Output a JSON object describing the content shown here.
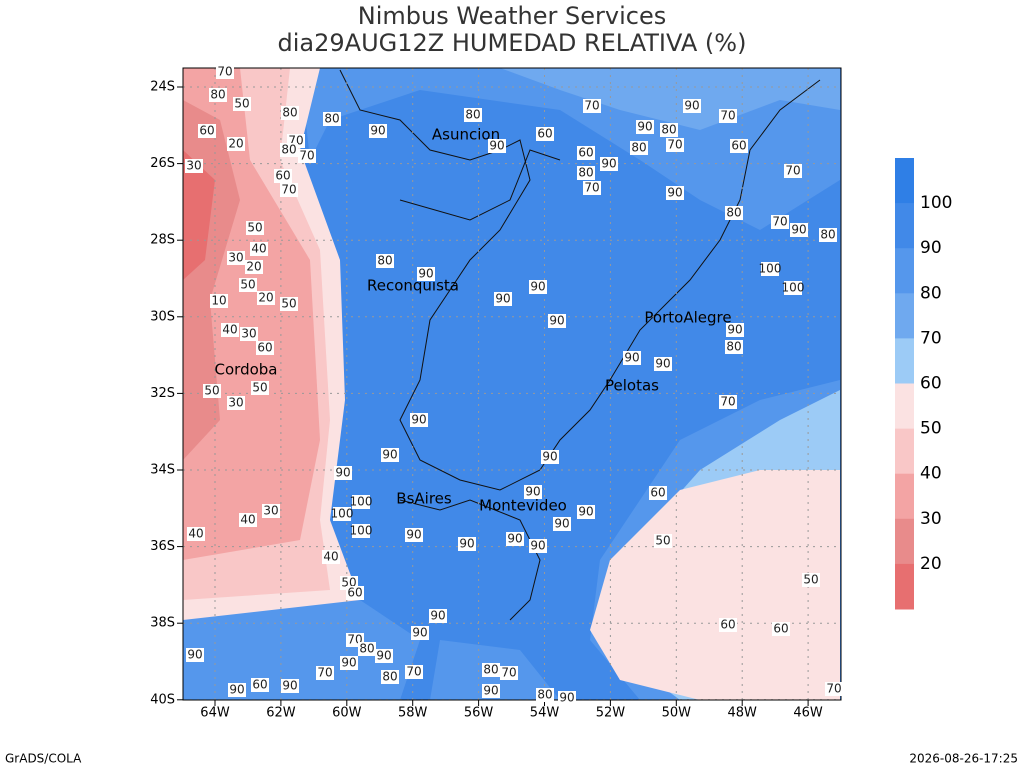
{
  "title": "Nimbus Weather Services",
  "subtitle": "dia29AUG12Z HUMEDAD RELATIVA (%)",
  "lat_ticks": [
    "24S",
    "26S",
    "28S",
    "30S",
    "32S",
    "34S",
    "36S",
    "38S",
    "40S"
  ],
  "lon_ticks": [
    "64W",
    "62W",
    "60W",
    "58W",
    "56W",
    "54W",
    "52W",
    "50W",
    "48W",
    "46W"
  ],
  "cities": [
    "Asuncion",
    "Reconquista",
    "PortoAlegre",
    "Pelotas",
    "Cordoba",
    "BsAires",
    "Montevideo"
  ],
  "colorbar": {
    "levels": [
      100,
      90,
      80,
      70,
      60,
      50,
      40,
      30,
      20
    ],
    "colors": [
      "#2f7fe6",
      "#4189e8",
      "#5597ec",
      "#6fa9ef",
      "#9ccbf6",
      "#fbe2e2",
      "#f9c7c7",
      "#f3a4a4",
      "#e88b8b",
      "#e76f70"
    ]
  },
  "contour_labels": [
    70,
    80,
    50,
    60,
    20,
    30,
    60,
    70,
    80,
    70,
    80,
    70,
    80,
    90,
    80,
    90,
    70,
    60,
    60,
    80,
    90,
    70,
    90,
    80,
    80,
    70,
    90,
    70,
    60,
    70,
    90,
    80,
    70,
    90,
    80,
    100,
    100,
    50,
    40,
    30,
    20,
    50,
    20,
    50,
    10,
    40,
    30,
    60,
    50,
    30,
    50,
    80,
    90,
    90,
    90,
    90,
    90,
    80,
    90,
    90,
    70,
    90,
    90,
    90,
    90,
    100,
    100,
    100,
    30,
    40,
    40,
    90,
    90,
    90,
    90,
    90,
    90,
    90,
    60,
    50,
    50,
    60,
    60,
    40,
    50,
    60,
    90,
    90,
    70,
    80,
    90,
    90,
    70,
    90,
    80,
    70,
    80,
    70,
    90,
    90,
    60,
    90,
    80,
    90,
    70
  ],
  "footer": {
    "left": "GrADS/COLA",
    "right": "2026-08-26-17:25"
  }
}
